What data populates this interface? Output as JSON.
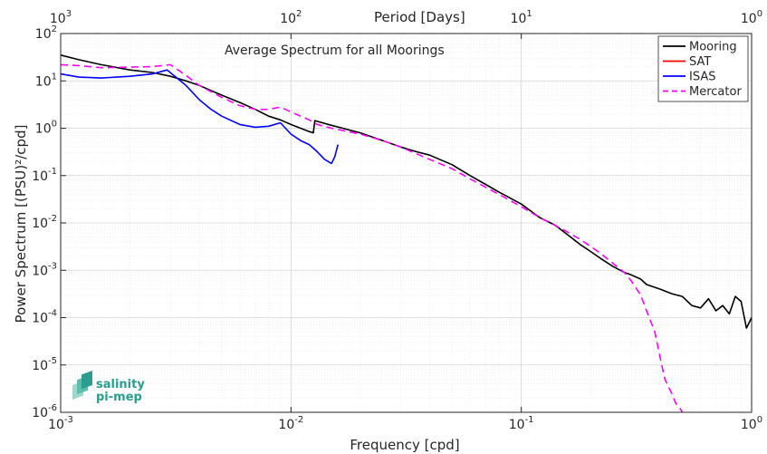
{
  "chart_data": {
    "type": "line",
    "title": "Average Spectrum for all Moorings",
    "xlabel": "Frequency [cpd]",
    "ylabel": "Power Spectrum [(PSU)²/cpd]",
    "top_xlabel": "Period [Days]",
    "x_scale": "log",
    "y_scale": "log",
    "xlim": [
      0.001,
      1
    ],
    "ylim": [
      1e-06,
      100
    ],
    "grid": true,
    "legend_position": "top-right",
    "x_ticks": [
      {
        "value": 0.001,
        "base": "10",
        "exp": "-3"
      },
      {
        "value": 0.01,
        "base": "10",
        "exp": "-2"
      },
      {
        "value": 0.1,
        "base": "10",
        "exp": "-1"
      },
      {
        "value": 1,
        "base": "10",
        "exp": "0"
      }
    ],
    "top_ticks": [
      {
        "value": 0.001,
        "base": "10",
        "exp": "3"
      },
      {
        "value": 0.01,
        "base": "10",
        "exp": "2"
      },
      {
        "value": 0.1,
        "base": "10",
        "exp": "1"
      },
      {
        "value": 1,
        "base": "10",
        "exp": "0"
      }
    ],
    "y_ticks": [
      {
        "value": 100,
        "base": "10",
        "exp": "2"
      },
      {
        "value": 10,
        "base": "10",
        "exp": "1"
      },
      {
        "value": 1,
        "base": "10",
        "exp": "0"
      },
      {
        "value": 0.1,
        "base": "10",
        "exp": "-1"
      },
      {
        "value": 0.01,
        "base": "10",
        "exp": "-2"
      },
      {
        "value": 0.001,
        "base": "10",
        "exp": "-3"
      },
      {
        "value": 0.0001,
        "base": "10",
        "exp": "-4"
      },
      {
        "value": 1e-05,
        "base": "10",
        "exp": "-5"
      },
      {
        "value": 1e-06,
        "base": "10",
        "exp": "-6"
      }
    ],
    "series": [
      {
        "name": "Mooring",
        "color": "#000000",
        "dash": "",
        "x": [
          0.001,
          0.0012,
          0.0015,
          0.002,
          0.0025,
          0.003,
          0.0035,
          0.004,
          0.005,
          0.006,
          0.007,
          0.008,
          0.009,
          0.01,
          0.011,
          0.012,
          0.0125,
          0.0127,
          0.013,
          0.015,
          0.02,
          0.025,
          0.03,
          0.035,
          0.04,
          0.05,
          0.06,
          0.07,
          0.08,
          0.1,
          0.12,
          0.14,
          0.16,
          0.18,
          0.2,
          0.22,
          0.25,
          0.28,
          0.3,
          0.33,
          0.35,
          0.4,
          0.45,
          0.5,
          0.55,
          0.6,
          0.65,
          0.7,
          0.75,
          0.8,
          0.85,
          0.9,
          0.95,
          1.0
        ],
        "y": [
          35,
          28,
          22,
          17,
          15,
          12.5,
          10,
          8,
          5,
          3.5,
          2.5,
          1.8,
          1.5,
          1.2,
          1.0,
          0.85,
          0.8,
          1.45,
          1.4,
          1.15,
          0.8,
          0.55,
          0.4,
          0.32,
          0.27,
          0.17,
          0.1,
          0.065,
          0.045,
          0.025,
          0.013,
          0.009,
          0.0055,
          0.0035,
          0.0025,
          0.0018,
          0.0012,
          0.0009,
          0.0008,
          0.00065,
          0.0005,
          0.0004,
          0.00032,
          0.00028,
          0.00018,
          0.00016,
          0.00025,
          0.00014,
          0.00018,
          0.00012,
          0.00028,
          0.00022,
          6e-05,
          0.0001
        ]
      },
      {
        "name": "SAT",
        "color": "#ff0000",
        "dash": "",
        "x": [],
        "y": []
      },
      {
        "name": "ISAS",
        "color": "#0000ff",
        "dash": "",
        "x": [
          0.001,
          0.0012,
          0.0015,
          0.002,
          0.0025,
          0.0029,
          0.0035,
          0.004,
          0.0045,
          0.005,
          0.006,
          0.007,
          0.008,
          0.009,
          0.01,
          0.011,
          0.012,
          0.013,
          0.014,
          0.015,
          0.0155,
          0.016
        ],
        "y": [
          14,
          12,
          11.5,
          12.5,
          14,
          17,
          8,
          4,
          2.5,
          1.8,
          1.2,
          1.05,
          1.1,
          1.3,
          0.75,
          0.55,
          0.45,
          0.32,
          0.22,
          0.18,
          0.25,
          0.45
        ]
      },
      {
        "name": "Mercator",
        "color": "#ff00ff",
        "dash": "8,5",
        "x": [
          0.001,
          0.0012,
          0.0015,
          0.002,
          0.0025,
          0.003,
          0.0035,
          0.004,
          0.005,
          0.006,
          0.007,
          0.008,
          0.009,
          0.01,
          0.011,
          0.012,
          0.013,
          0.015,
          0.02,
          0.025,
          0.03,
          0.04,
          0.05,
          0.06,
          0.08,
          0.1,
          0.12,
          0.15,
          0.18,
          0.2,
          0.22,
          0.25,
          0.28,
          0.3,
          0.33,
          0.35,
          0.38,
          0.4,
          0.42,
          0.45,
          0.47,
          0.49,
          0.5
        ],
        "y": [
          22,
          21,
          19,
          19.5,
          20,
          22,
          13,
          8,
          4.5,
          3,
          2.5,
          2.5,
          2.8,
          2.2,
          1.8,
          1.5,
          1.2,
          1.0,
          0.75,
          0.55,
          0.4,
          0.22,
          0.14,
          0.085,
          0.04,
          0.022,
          0.013,
          0.0075,
          0.0045,
          0.0032,
          0.0023,
          0.0014,
          0.0009,
          0.0006,
          0.0003,
          0.00014,
          5e-05,
          1.5e-05,
          5e-06,
          2.5e-06,
          1.5e-06,
          1.2e-06,
          1e-06
        ]
      }
    ]
  },
  "logo": {
    "line1": "salinity",
    "line2": "pi-mep"
  }
}
